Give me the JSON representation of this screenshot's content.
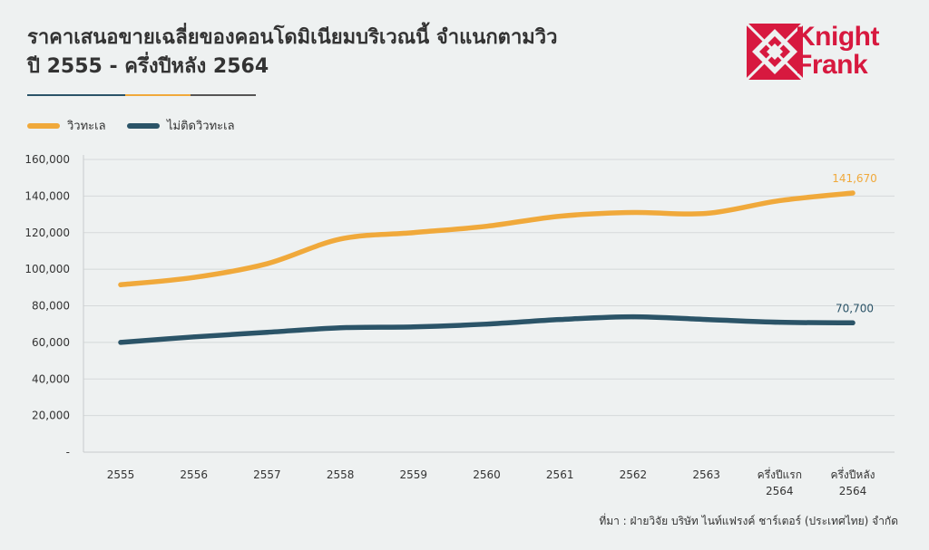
{
  "header": {
    "title_line1": "ราคาเสนอขายเฉลี่ยของคอนโดมิเนียมบริเวณนี้ จำแนกตามวิว",
    "title_line2": "ปี 2555 - ครึ่งปีหลัง 2564"
  },
  "logo": {
    "brand_line1": "Knight",
    "brand_line2": "Frank",
    "color": "#d7193f"
  },
  "source": "ที่มา : ฝ่ายวิจัย บริษัท ไนท์แฟรงค์ ชาร์เตอร์ (ประเทศไทย) จำกัด",
  "chart_data": {
    "type": "line",
    "categories": [
      "2555",
      "2556",
      "2557",
      "2558",
      "2559",
      "2560",
      "2561",
      "2562",
      "2563",
      "ครึ่งปีแรก 2564",
      "ครึ่งปีหลัง 2564"
    ],
    "series": [
      {
        "name": "วิวทะเล",
        "color": "#f0a93b",
        "values": [
          91500,
          95500,
          103000,
          116500,
          120000,
          123500,
          129000,
          131000,
          130500,
          137500,
          141670
        ],
        "end_label": "141,670"
      },
      {
        "name": "ไม่ติดวิวทะเล",
        "color": "#2b5468",
        "values": [
          60000,
          63000,
          65500,
          68000,
          68500,
          70000,
          72500,
          74000,
          72500,
          71000,
          70700
        ],
        "end_label": "70,700"
      }
    ],
    "y_ticks": [
      "-",
      "20,000",
      "40,000",
      "60,000",
      "80,000",
      "100,000",
      "120,000",
      "140,000",
      "160,000"
    ],
    "ylim": [
      0,
      160000
    ],
    "grid": true,
    "legend_position": "top-left"
  }
}
